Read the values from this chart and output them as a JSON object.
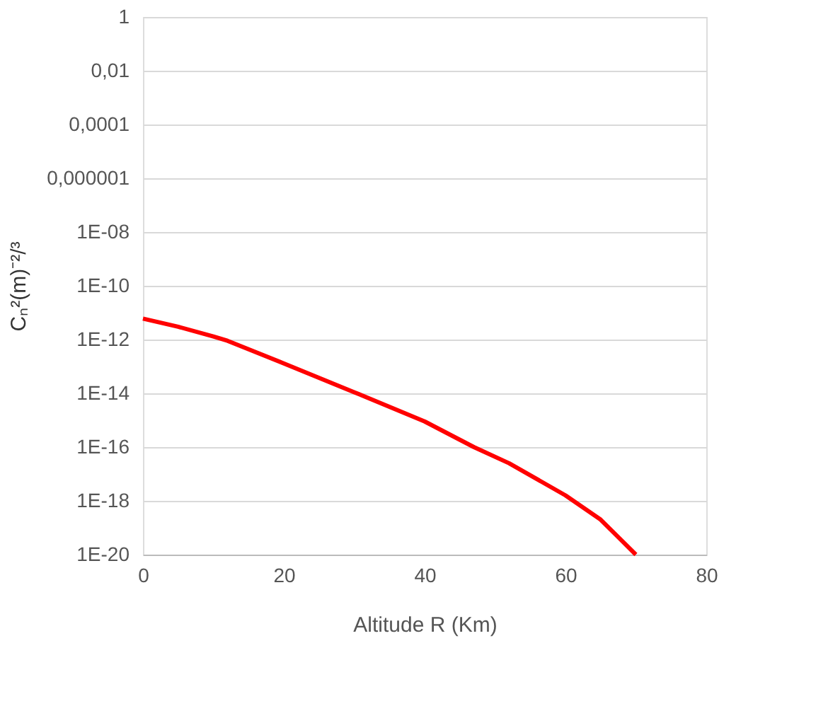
{
  "chart_data": {
    "type": "line",
    "xlabel": "Altitude R (Km)",
    "ylabel": "Cₙ²(m)⁻²/³",
    "log": "y",
    "grid": "y",
    "marker": "none",
    "line_style": "solid",
    "x": [
      0,
      5,
      10,
      12,
      20,
      30,
      40,
      47,
      52,
      60,
      65,
      70
    ],
    "series": [
      {
        "color": "#ff0000",
        "values": [
          6e-12,
          3e-12,
          1.3e-12,
          9e-13,
          1.3e-13,
          1.1e-14,
          9e-16,
          1e-16,
          2.5e-17,
          1.6e-18,
          2e-19,
          1e-20
        ]
      }
    ],
    "xlim": [
      0,
      80
    ],
    "xticks": [
      0,
      20,
      40,
      60,
      80
    ],
    "ylim": [
      1e-20,
      1
    ],
    "yticks": [
      {
        "value": 1e-20,
        "label": "1E-20"
      },
      {
        "value": 1e-18,
        "label": "1E-18"
      },
      {
        "value": 1e-16,
        "label": "1E-16"
      },
      {
        "value": 1e-14,
        "label": "1E-14"
      },
      {
        "value": 1e-12,
        "label": "1E-12"
      },
      {
        "value": 1e-10,
        "label": "1E-10"
      },
      {
        "value": 1e-08,
        "label": "1E-08"
      },
      {
        "value": 1e-06,
        "label": "0,000001"
      },
      {
        "value": 0.0001,
        "label": "0,0001"
      },
      {
        "value": 0.01,
        "label": "0,01"
      },
      {
        "value": 1,
        "label": "1"
      }
    ]
  }
}
